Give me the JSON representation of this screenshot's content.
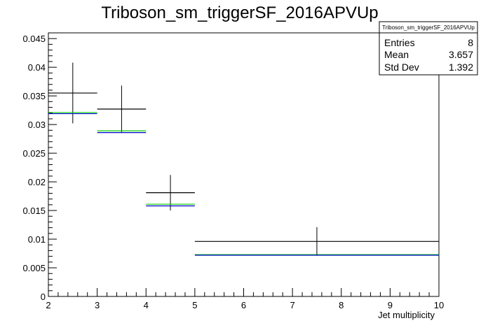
{
  "chart_data": {
    "type": "histogram",
    "title": "Triboson_sm_triggerSF_2016APVUp",
    "xlabel": "Jet multiplicity",
    "ylabel": "",
    "xlim": [
      2,
      10
    ],
    "ylim": [
      0,
      0.046
    ],
    "x_ticks": [
      "2",
      "3",
      "4",
      "5",
      "6",
      "7",
      "8",
      "9",
      "10"
    ],
    "y_ticks": [
      "0",
      "0.005",
      "0.01",
      "0.015",
      "0.02",
      "0.025",
      "0.03",
      "0.035",
      "0.04",
      "0.045"
    ],
    "bins": [
      {
        "low": 2,
        "high": 3,
        "center": 2.5
      },
      {
        "low": 3,
        "high": 4,
        "center": 3.5
      },
      {
        "low": 4,
        "high": 5,
        "center": 4.5
      },
      {
        "low": 5,
        "high": 10,
        "center": 7.5
      }
    ],
    "series": [
      {
        "color": "#000000",
        "values": [
          0.0355,
          0.0327,
          0.0181,
          0.0096
        ],
        "errors": [
          0.0053,
          0.0041,
          0.0031,
          0.0025
        ],
        "style": "errorbar"
      },
      {
        "color": "#00cc00",
        "values": [
          0.0321,
          0.0289,
          0.0161,
          0.0073
        ],
        "style": "step"
      },
      {
        "color": "#0000cc",
        "values": [
          0.0319,
          0.0286,
          0.0158,
          0.0072
        ],
        "style": "step"
      }
    ],
    "grid": false,
    "stats_box": {
      "name": "Triboson_sm_triggerSF_2016APVUp",
      "rows": [
        {
          "label": "Entries",
          "value": "8"
        },
        {
          "label": "Mean",
          "value": "3.657"
        },
        {
          "label": "Std Dev",
          "value": "1.392"
        }
      ]
    }
  }
}
